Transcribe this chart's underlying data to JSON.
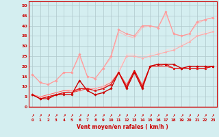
{
  "x": [
    0,
    1,
    2,
    3,
    4,
    5,
    6,
    7,
    8,
    9,
    10,
    11,
    12,
    13,
    14,
    15,
    16,
    17,
    18,
    19,
    20,
    21,
    22,
    23
  ],
  "series": [
    {
      "values": [
        6,
        4,
        4,
        6,
        6,
        6,
        13,
        8,
        6,
        7,
        9,
        17,
        9,
        17,
        9,
        20,
        21,
        21,
        21,
        19,
        20,
        20,
        20,
        20
      ],
      "color": "#cc0000",
      "marker": "D",
      "markersize": 1.8,
      "linewidth": 1.0,
      "zorder": 5
    },
    {
      "values": [
        6,
        4,
        5,
        6,
        7,
        7,
        9,
        9,
        8,
        9,
        11,
        17,
        10,
        18,
        10,
        20,
        21,
        21,
        19,
        19,
        19,
        19,
        19,
        20
      ],
      "color": "#dd1111",
      "marker": "^",
      "markersize": 2.0,
      "linewidth": 0.8,
      "zorder": 4
    },
    {
      "values": [
        6,
        4,
        5,
        6,
        7,
        7,
        8,
        9,
        8,
        9,
        11,
        17,
        10,
        18,
        10,
        20,
        20,
        20,
        19,
        19,
        19,
        19,
        19,
        20
      ],
      "color": "#ee3333",
      "marker": null,
      "markersize": 0,
      "linewidth": 0.7,
      "zorder": 3
    },
    {
      "values": [
        6,
        5,
        6,
        7,
        8,
        8,
        9,
        9,
        9,
        10,
        12,
        17,
        11,
        18,
        11,
        20,
        20,
        21,
        19,
        19,
        19,
        19,
        19,
        20
      ],
      "color": "#ff5555",
      "marker": null,
      "markersize": 0,
      "linewidth": 0.6,
      "zorder": 2
    },
    {
      "values": [
        16,
        12,
        11,
        13,
        17,
        17,
        26,
        15,
        14,
        19,
        25,
        38,
        36,
        35,
        40,
        40,
        39,
        47,
        36,
        35,
        36,
        42,
        43,
        44
      ],
      "color": "#ff9999",
      "marker": "D",
      "markersize": 1.8,
      "linewidth": 0.8,
      "zorder": 4
    },
    {
      "values": [
        16,
        12,
        11,
        13,
        17,
        17,
        25,
        15,
        14,
        19,
        24,
        37,
        35,
        34,
        39,
        40,
        39,
        46,
        36,
        35,
        36,
        41,
        43,
        44
      ],
      "color": "#ffbbbb",
      "marker": null,
      "markersize": 0,
      "linewidth": 0.7,
      "zorder": 3
    },
    {
      "values": [
        6,
        5,
        5,
        6,
        7,
        8,
        8,
        9,
        9,
        10,
        11,
        17,
        25,
        25,
        24,
        25,
        26,
        27,
        28,
        30,
        32,
        35,
        36,
        37
      ],
      "color": "#ffaaaa",
      "marker": "D",
      "markersize": 1.6,
      "linewidth": 0.7,
      "zorder": 2
    },
    {
      "values": [
        6,
        5,
        6,
        7,
        8,
        8,
        9,
        9,
        9,
        10,
        12,
        17,
        25,
        25,
        24,
        25,
        26,
        27,
        28,
        30,
        32,
        35,
        36,
        37
      ],
      "color": "#ffcccc",
      "marker": null,
      "markersize": 0,
      "linewidth": 0.7,
      "zorder": 1
    },
    {
      "values": [
        6,
        5,
        6,
        7,
        8,
        9,
        10,
        10,
        10,
        11,
        13,
        18,
        26,
        26,
        25,
        26,
        27,
        28,
        29,
        31,
        33,
        36,
        37,
        38
      ],
      "color": "#ffdddd",
      "marker": null,
      "markersize": 0,
      "linewidth": 0.6,
      "zorder": 1
    }
  ],
  "xlim": [
    -0.5,
    23.5
  ],
  "ylim": [
    0,
    52
  ],
  "yticks": [
    0,
    5,
    10,
    15,
    20,
    25,
    30,
    35,
    40,
    45,
    50
  ],
  "xticks": [
    0,
    1,
    2,
    3,
    4,
    5,
    6,
    7,
    8,
    9,
    10,
    11,
    12,
    13,
    14,
    15,
    16,
    17,
    18,
    19,
    20,
    21,
    22,
    23
  ],
  "xlabel": "Vent moyen/en rafales ( km/h )",
  "background_color": "#d4eef0",
  "grid_color": "#b0c8cc",
  "tick_color": "#cc0000",
  "label_color": "#cc0000",
  "arrow_char": "↗",
  "spine_color": "#cc0000"
}
